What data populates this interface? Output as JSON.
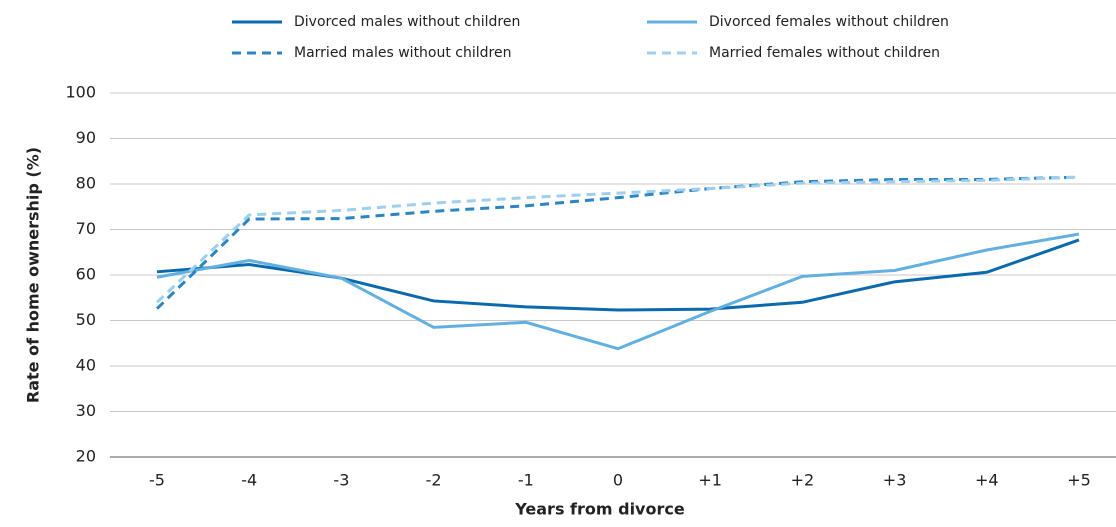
{
  "chart_data": {
    "type": "line",
    "x_label": "Years from divorce",
    "y_label": "Rate of home ownership (%)",
    "categories": [
      "-5",
      "-4",
      "-3",
      "-2",
      "-1",
      "0",
      "+1",
      "+2",
      "+3",
      "+4",
      "+5"
    ],
    "series": [
      {
        "name": "Divorced males without children",
        "color": "#0a6aad",
        "dashed": false,
        "values": [
          60.7,
          62.3,
          59.3,
          54.3,
          53.0,
          52.3,
          52.5,
          54.0,
          58.5,
          60.6,
          67.7
        ]
      },
      {
        "name": "Divorced females without children",
        "color": "#62b0e0",
        "dashed": false,
        "values": [
          59.5,
          63.2,
          59.3,
          48.5,
          49.6,
          43.8,
          52.0,
          59.7,
          61.0,
          65.5,
          69.0
        ]
      },
      {
        "name": "Married males without children",
        "color": "#2a85c2",
        "dashed": true,
        "values": [
          52.6,
          72.3,
          72.4,
          74.0,
          75.2,
          77.0,
          79.0,
          80.5,
          81.0,
          81.0,
          81.5
        ]
      },
      {
        "name": "Married females without children",
        "color": "#9fcfee",
        "dashed": true,
        "values": [
          54.0,
          73.2,
          74.2,
          75.8,
          77.0,
          78.0,
          79.0,
          80.2,
          80.5,
          80.8,
          81.5
        ]
      }
    ],
    "ylim": [
      20,
      100
    ],
    "yticks": [
      20,
      30,
      40,
      50,
      60,
      70,
      80,
      90,
      100
    ],
    "grid": true,
    "legend": "top"
  }
}
